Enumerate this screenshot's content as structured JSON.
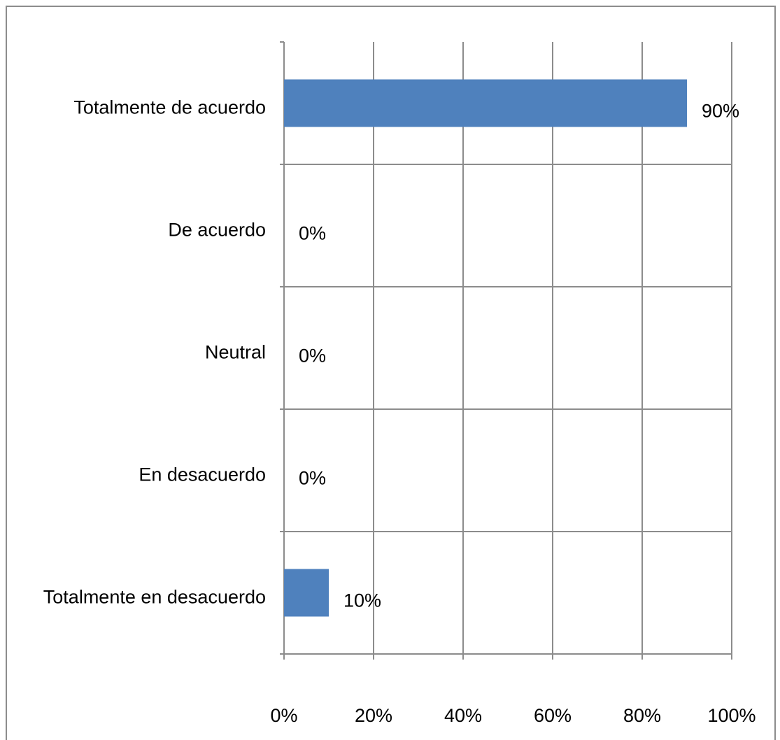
{
  "chart_data": {
    "type": "bar",
    "orientation": "horizontal",
    "categories": [
      "Totalmente de acuerdo",
      "De acuerdo",
      "Neutral",
      "En desacuerdo",
      "Totalmente en desacuerdo"
    ],
    "values": [
      90,
      0,
      0,
      0,
      10
    ],
    "value_labels": [
      "90%",
      "0%",
      "0%",
      "0%",
      "10%"
    ],
    "color": "#4f81bd",
    "xlim": [
      0,
      100
    ],
    "xticks": [
      {
        "value": 0,
        "label": "0%"
      },
      {
        "value": 20,
        "label": "20%"
      },
      {
        "value": 40,
        "label": "40%"
      },
      {
        "value": 60,
        "label": "60%"
      },
      {
        "value": 80,
        "label": "80%"
      },
      {
        "value": 100,
        "label": "100%"
      }
    ],
    "grid": true
  }
}
